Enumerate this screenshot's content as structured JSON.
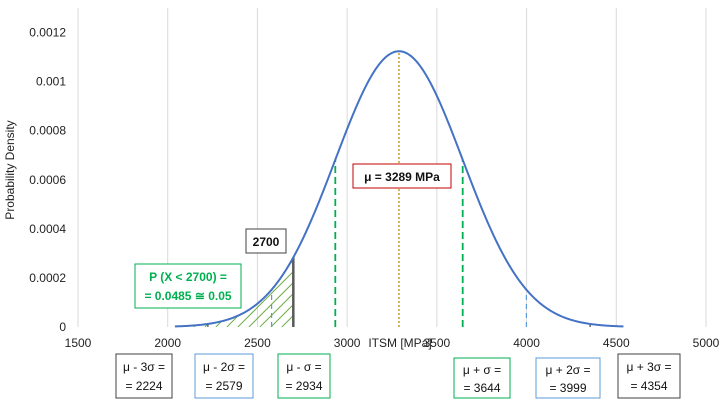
{
  "chart_data": {
    "type": "line",
    "title": "",
    "xlabel": "ITSM [MPa]",
    "ylabel": "Probability Density",
    "xlim": [
      1500,
      5000
    ],
    "ylim": [
      0,
      0.0013
    ],
    "x_ticks": [
      1500,
      2000,
      2500,
      3000,
      3500,
      4000,
      4500,
      5000
    ],
    "x_tick_labels": [
      "1500",
      "2000",
      "2500",
      "3000",
      "3500",
      "4000",
      "4500",
      "5000"
    ],
    "y_ticks": [
      0,
      0.0002,
      0.0004,
      0.0006,
      0.0008,
      0.001,
      0.0012
    ],
    "y_tick_labels": [
      "0",
      "0.0002",
      "0.0004",
      "0.0006",
      "0.0008",
      "0.001",
      "0.0012"
    ],
    "grid": "vertical",
    "colors": {
      "curve": "#4472c4",
      "mean": "#bf9000",
      "sigma1": "#00b050",
      "sigma2": "#5b9bd5",
      "sigma3": "#404040",
      "threshold": "#595959",
      "hatch": "#70ad47",
      "mean_box": "#c00000",
      "prob_text": "#00b050"
    },
    "series": [
      {
        "type": "normal_pdf",
        "mean": 3289,
        "sigma": 355,
        "x_range": [
          2040,
          4540
        ]
      }
    ],
    "lines": {
      "mean": 3289,
      "minus_3sigma": 2224,
      "minus_2sigma": 2579,
      "minus_1sigma": 2934,
      "plus_1sigma": 3644,
      "plus_2sigma": 3999,
      "plus_3sigma": 4354,
      "threshold": 2700
    },
    "shaded_region": {
      "from": 2040,
      "to": 2700,
      "pattern": "diagonal-hatch"
    },
    "annotations": {
      "threshold_label": "2700",
      "mean_label": "μ = 3289 MPa",
      "prob_line1": "P (X < 2700) =",
      "prob_line2": "= 0.0485 ≅ 0.05",
      "sigma_boxes": [
        {
          "line1": "μ - 3σ =",
          "line2": "= 2224",
          "color": "#404040"
        },
        {
          "line1": "μ - 2σ =",
          "line2": "= 2579",
          "color": "#5b9bd5"
        },
        {
          "line1": "μ - σ =",
          "line2": "= 2934",
          "color": "#00b050"
        },
        {
          "line1": "μ + σ =",
          "line2": "= 3644",
          "color": "#00b050"
        },
        {
          "line1": "μ + 2σ =",
          "line2": "= 3999",
          "color": "#5b9bd5"
        },
        {
          "line1": "μ + 3σ =",
          "line2": "= 4354",
          "color": "#404040"
        }
      ]
    }
  }
}
